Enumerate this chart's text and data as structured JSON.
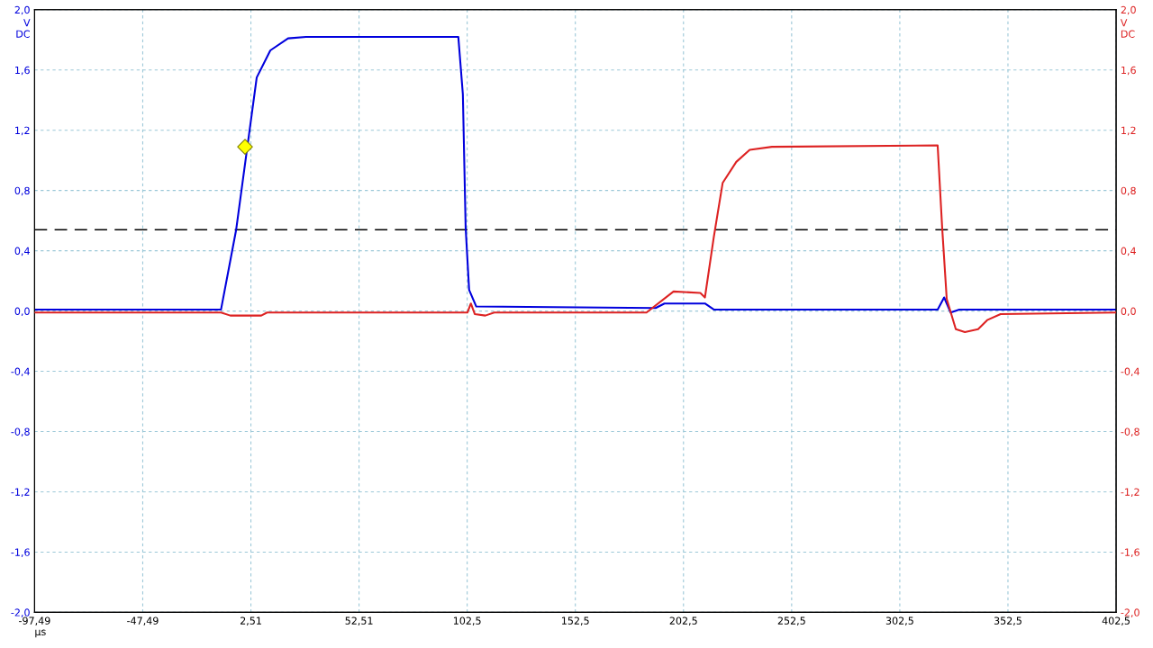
{
  "chart_data": {
    "type": "line",
    "xlabel": "µs",
    "ylabel": "V\nDC",
    "y2label": "V\nDC",
    "xlim": [
      -97.49,
      402.5
    ],
    "xticks": [
      {
        "value": -97.49,
        "label": "-97,49"
      },
      {
        "value": -47.49,
        "label": "-47,49"
      },
      {
        "value": 2.51,
        "label": "2,51"
      },
      {
        "value": 52.51,
        "label": "52,51"
      },
      {
        "value": 102.5,
        "label": "102,5"
      },
      {
        "value": 152.5,
        "label": "152,5"
      },
      {
        "value": 202.5,
        "label": "202,5"
      },
      {
        "value": 252.5,
        "label": "252,5"
      },
      {
        "value": 302.5,
        "label": "302,5"
      },
      {
        "value": 352.5,
        "label": "352,5"
      },
      {
        "value": 402.5,
        "label": "402,5"
      }
    ],
    "ylim": [
      -2.0,
      2.0
    ],
    "yticks": [
      {
        "value": -2.0,
        "label": "-2,0"
      },
      {
        "value": -1.6,
        "label": "-1,6"
      },
      {
        "value": -1.2,
        "label": "-1,2"
      },
      {
        "value": -0.8,
        "label": "-0,8"
      },
      {
        "value": -0.4,
        "label": "-0,4"
      },
      {
        "value": 0.0,
        "label": "0,0"
      },
      {
        "value": 0.4,
        "label": "0,4"
      },
      {
        "value": 0.8,
        "label": "0,8"
      },
      {
        "value": 1.2,
        "label": "1,2"
      },
      {
        "value": 1.6,
        "label": "1,6"
      },
      {
        "value": 2.0,
        "label": "2,0"
      }
    ],
    "y2lim": [
      -2.0,
      2.0
    ],
    "y2ticks": [
      {
        "value": -2.0,
        "label": "-2,0"
      },
      {
        "value": -1.6,
        "label": "-1,6"
      },
      {
        "value": -1.2,
        "label": "-1,2"
      },
      {
        "value": -0.8,
        "label": "-0,8"
      },
      {
        "value": -0.4,
        "label": "-0,4"
      },
      {
        "value": 0.0,
        "label": "0,0"
      },
      {
        "value": 0.4,
        "label": "0,4"
      },
      {
        "value": 0.8,
        "label": "0,8"
      },
      {
        "value": 1.2,
        "label": "1,2"
      },
      {
        "value": 1.6,
        "label": "1,6"
      },
      {
        "value": 2.0,
        "label": "2,0"
      }
    ],
    "grid": true,
    "legend": false,
    "marker": "none",
    "line_style": "solid",
    "ref_lines": [
      {
        "axis": "y",
        "value": 0.54,
        "color": "#000000",
        "line_style": "dashed"
      }
    ],
    "series": [
      {
        "color": "#0000dd",
        "x": [
          -97.49,
          -11.3,
          -4.3,
          5.2,
          11.5,
          19.7,
          28,
          98.4,
          100.5,
          101.8,
          103.4,
          106.7,
          189.6,
          193.7,
          212.4,
          216.5,
          320,
          323,
          326,
          330,
          402.5
        ],
        "values": [
          0.01,
          0.01,
          0.54,
          1.55,
          1.73,
          1.81,
          1.82,
          1.82,
          1.44,
          0.55,
          0.14,
          0.03,
          0.02,
          0.05,
          0.05,
          0.01,
          0.01,
          0.09,
          -0.01,
          0.01,
          0.01
        ]
      },
      {
        "color": "#dd2222",
        "axis": "y2",
        "x": [
          -97.49,
          -11.3,
          -7,
          7.3,
          10,
          102.6,
          104.2,
          106,
          110.9,
          115,
          185.4,
          197.9,
          210.3,
          212.4,
          216.5,
          220.6,
          226.9,
          233.1,
          243.4,
          320,
          322.1,
          324.2,
          328.4,
          332.6,
          338.7,
          342.9,
          349.1,
          402.5
        ],
        "values": [
          -0.01,
          -0.01,
          -0.03,
          -0.03,
          -0.01,
          -0.01,
          0.05,
          -0.02,
          -0.03,
          -0.01,
          -0.01,
          0.13,
          0.12,
          0.09,
          0.49,
          0.85,
          0.99,
          1.07,
          1.09,
          1.1,
          0.55,
          0.08,
          -0.12,
          -0.14,
          -0.12,
          -0.06,
          -0.02,
          -0.01
        ]
      },
      {
        "type": "scatter",
        "marker": "diamond",
        "color": "#ffff00",
        "x": [
          -0.2
        ],
        "values": [
          1.09
        ]
      }
    ]
  }
}
